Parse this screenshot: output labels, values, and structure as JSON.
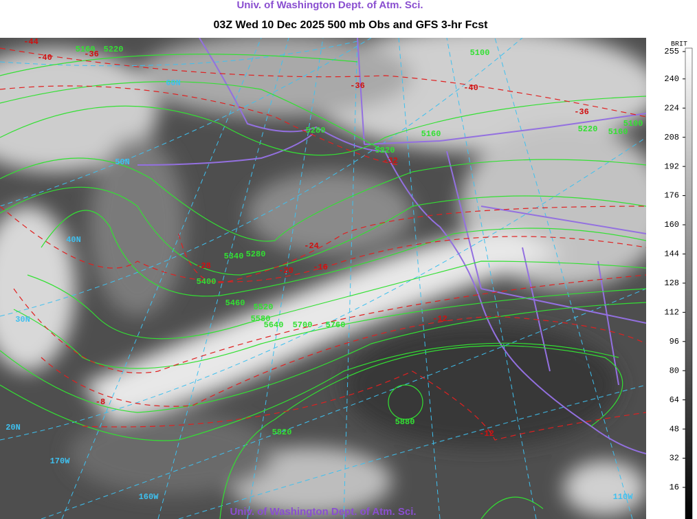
{
  "header": "Univ. of Washington Dept. of Atm. Sci.",
  "title": "03Z Wed 10 Dec 2025 500 mb Obs and GFS 3-hr Fcst",
  "footer": "Univ. of Washington Dept. of Atm. Sci.",
  "colorbar": {
    "label": "BRIT",
    "ticks": [
      255,
      240,
      224,
      208,
      192,
      176,
      160,
      144,
      128,
      112,
      96,
      80,
      64,
      48,
      32,
      16
    ],
    "range": [
      255,
      16
    ]
  },
  "map": {
    "height_labels": [
      "5160",
      "5220",
      "5100",
      "5280",
      "5160",
      "5220",
      "5160",
      "5100",
      "5220",
      "5340",
      "5280",
      "5400",
      "5460",
      "5520",
      "5580",
      "5640",
      "5700",
      "5760",
      "5820",
      "5880"
    ],
    "temperature_labels": [
      "-44",
      "-40",
      "-36",
      "-36",
      "-40",
      "-36",
      "-32",
      "-24",
      "-28",
      "-20",
      "-16",
      "-12",
      "-8",
      "-12"
    ],
    "graticule_labels": [
      "60N",
      "50N",
      "40N",
      "30N",
      "20N",
      "170W",
      "160W",
      "110W"
    ]
  }
}
